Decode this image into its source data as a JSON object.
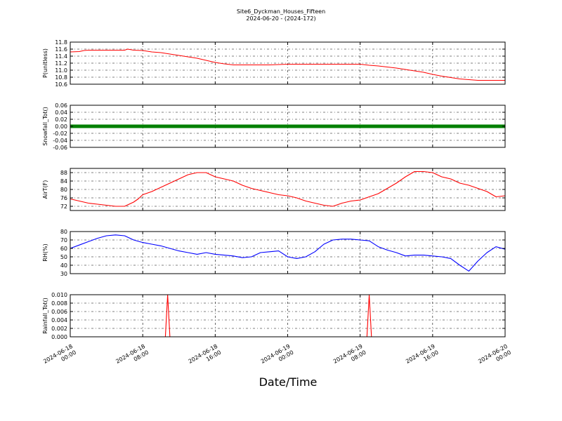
{
  "chart_data": {
    "type": "line",
    "title": "Site6_Dyckman_Houses_Fifteen",
    "subtitle": "2024-06-20 - (2024-172)",
    "xlabel": "Date/Time",
    "x_range": [
      "2024-06-18 00:00",
      "2024-06-20 00:00"
    ],
    "x_ticks": [
      {
        "value": "2024-06-18 00:00",
        "line1": "2024-06-18",
        "line2": "00:00"
      },
      {
        "value": "2024-06-18 08:00",
        "line1": "2024-06-18",
        "line2": "08:00"
      },
      {
        "value": "2024-06-18 16:00",
        "line1": "2024-06-18",
        "line2": "16:00"
      },
      {
        "value": "2024-06-19 00:00",
        "line1": "2024-06-19",
        "line2": "00:00"
      },
      {
        "value": "2024-06-19 08:00",
        "line1": "2024-06-19",
        "line2": "08:00"
      },
      {
        "value": "2024-06-19 16:00",
        "line1": "2024-06-19",
        "line2": "16:00"
      },
      {
        "value": "2024-06-20 00:00",
        "line1": "2024-06-20",
        "line2": "00:00"
      }
    ],
    "grid": true,
    "panels": [
      {
        "ylabel": "P(unitless)",
        "ylim": [
          10.6,
          11.8
        ],
        "yticks": [
          "10.6",
          "10.8",
          "11.0",
          "11.2",
          "11.4",
          "11.6",
          "11.8"
        ],
        "color": "#ff0000",
        "style": "line",
        "x": [
          "2024-06-18 00:00",
          "2024-06-18 01:00",
          "2024-06-18 01:30",
          "2024-06-18 02:00",
          "2024-06-18 04:00",
          "2024-06-18 06:00",
          "2024-06-18 06:20",
          "2024-06-18 07:00",
          "2024-06-18 08:00",
          "2024-06-18 09:00",
          "2024-06-18 10:00",
          "2024-06-18 11:00",
          "2024-06-18 12:00",
          "2024-06-18 13:00",
          "2024-06-18 14:00",
          "2024-06-18 15:00",
          "2024-06-18 16:00",
          "2024-06-18 17:00",
          "2024-06-18 18:00",
          "2024-06-18 20:00",
          "2024-06-18 22:00",
          "2024-06-19 00:00",
          "2024-06-19 04:00",
          "2024-06-19 08:00",
          "2024-06-19 09:00",
          "2024-06-19 10:00",
          "2024-06-19 11:00",
          "2024-06-19 12:00",
          "2024-06-19 13:00",
          "2024-06-19 14:00",
          "2024-06-19 15:00",
          "2024-06-19 16:00",
          "2024-06-19 17:00",
          "2024-06-19 18:00",
          "2024-06-19 19:00",
          "2024-06-19 20:00",
          "2024-06-19 21:00",
          "2024-06-19 22:00",
          "2024-06-20 00:00"
        ],
        "values": [
          11.52,
          11.53,
          11.56,
          11.57,
          11.57,
          11.57,
          11.6,
          11.57,
          11.56,
          11.52,
          11.5,
          11.46,
          11.42,
          11.38,
          11.34,
          11.28,
          11.22,
          11.18,
          11.15,
          11.15,
          11.15,
          11.17,
          11.17,
          11.17,
          11.14,
          11.12,
          11.09,
          11.06,
          11.02,
          10.98,
          10.94,
          10.88,
          10.83,
          10.79,
          10.75,
          10.73,
          10.71,
          10.71,
          10.71
        ]
      },
      {
        "ylabel": "Snowfall_Tot()",
        "ylim": [
          -0.06,
          0.06
        ],
        "yticks": [
          "-0.06",
          "-0.04",
          "-0.02",
          "0.00",
          "0.02",
          "0.04",
          "0.06"
        ],
        "color": "#008000",
        "style": "thick",
        "x": [
          "2024-06-18 00:00",
          "2024-06-20 00:00"
        ],
        "values": [
          0.0,
          0.0
        ]
      },
      {
        "ylabel": "AirT(F)",
        "ylim": [
          70,
          90
        ],
        "yticks": [
          "72",
          "76",
          "80",
          "84",
          "88"
        ],
        "ytick_values": [
          72,
          76,
          80,
          84,
          88
        ],
        "color": "#ff0000",
        "style": "line",
        "x": [
          "2024-06-18 00:00",
          "2024-06-18 01:00",
          "2024-06-18 02:00",
          "2024-06-18 03:00",
          "2024-06-18 04:00",
          "2024-06-18 05:00",
          "2024-06-18 06:00",
          "2024-06-18 07:00",
          "2024-06-18 07:30",
          "2024-06-18 08:00",
          "2024-06-18 09:00",
          "2024-06-18 10:00",
          "2024-06-18 11:00",
          "2024-06-18 12:00",
          "2024-06-18 13:00",
          "2024-06-18 14:00",
          "2024-06-18 15:00",
          "2024-06-18 16:00",
          "2024-06-18 17:00",
          "2024-06-18 18:00",
          "2024-06-18 19:00",
          "2024-06-18 20:00",
          "2024-06-18 21:00",
          "2024-06-18 22:00",
          "2024-06-18 23:00",
          "2024-06-19 00:00",
          "2024-06-19 01:00",
          "2024-06-19 02:00",
          "2024-06-19 03:00",
          "2024-06-19 04:00",
          "2024-06-19 05:00",
          "2024-06-19 06:00",
          "2024-06-19 07:00",
          "2024-06-19 08:00",
          "2024-06-19 09:00",
          "2024-06-19 10:00",
          "2024-06-19 11:00",
          "2024-06-19 12:00",
          "2024-06-19 13:00",
          "2024-06-19 14:00",
          "2024-06-19 15:00",
          "2024-06-19 16:00",
          "2024-06-19 17:00",
          "2024-06-19 18:00",
          "2024-06-19 19:00",
          "2024-06-19 20:00",
          "2024-06-19 21:00",
          "2024-06-19 22:00",
          "2024-06-19 23:00",
          "2024-06-20 00:00"
        ],
        "values": [
          75.5,
          74.5,
          73.5,
          73.0,
          72.5,
          72.0,
          72.0,
          74.0,
          75.5,
          77.5,
          79.0,
          81.0,
          83.0,
          85.0,
          87.0,
          88.0,
          88.0,
          86.0,
          85.0,
          84.0,
          82.0,
          80.5,
          79.5,
          78.5,
          77.5,
          77.0,
          76.0,
          74.5,
          73.5,
          72.5,
          72.0,
          73.5,
          74.5,
          75.0,
          76.5,
          78.0,
          80.5,
          83.0,
          86.0,
          88.5,
          88.5,
          88.0,
          86.0,
          85.0,
          83.0,
          82.0,
          80.5,
          79.0,
          76.5,
          77.0
        ]
      },
      {
        "ylabel": "RH(%)",
        "ylim": [
          30,
          80
        ],
        "yticks": [
          "30",
          "40",
          "50",
          "60",
          "70",
          "80"
        ],
        "color": "#0000ff",
        "style": "line",
        "x": [
          "2024-06-18 00:00",
          "2024-06-18 01:00",
          "2024-06-18 02:00",
          "2024-06-18 03:00",
          "2024-06-18 04:00",
          "2024-06-18 05:00",
          "2024-06-18 06:00",
          "2024-06-18 07:00",
          "2024-06-18 08:00",
          "2024-06-18 09:00",
          "2024-06-18 10:00",
          "2024-06-18 11:00",
          "2024-06-18 12:00",
          "2024-06-18 13:00",
          "2024-06-18 14:00",
          "2024-06-18 15:00",
          "2024-06-18 16:00",
          "2024-06-18 17:00",
          "2024-06-18 18:00",
          "2024-06-18 19:00",
          "2024-06-18 20:00",
          "2024-06-18 21:00",
          "2024-06-18 22:00",
          "2024-06-18 23:00",
          "2024-06-19 00:00",
          "2024-06-19 01:00",
          "2024-06-19 02:00",
          "2024-06-19 03:00",
          "2024-06-19 04:00",
          "2024-06-19 05:00",
          "2024-06-19 06:00",
          "2024-06-19 07:00",
          "2024-06-19 08:00",
          "2024-06-19 09:00",
          "2024-06-19 10:00",
          "2024-06-19 11:00",
          "2024-06-19 12:00",
          "2024-06-19 13:00",
          "2024-06-19 14:00",
          "2024-06-19 15:00",
          "2024-06-19 16:00",
          "2024-06-19 17:00",
          "2024-06-19 18:00",
          "2024-06-19 19:00",
          "2024-06-19 20:00",
          "2024-06-19 21:00",
          "2024-06-19 22:00",
          "2024-06-19 23:00",
          "2024-06-20 00:00"
        ],
        "values": [
          60,
          64,
          68,
          72,
          75,
          76,
          75,
          70,
          67,
          65,
          63,
          60,
          57,
          55,
          53,
          55,
          53,
          52,
          51,
          49,
          50,
          55,
          56,
          57,
          50,
          48,
          50,
          56,
          65,
          70,
          71,
          71,
          70,
          69,
          62,
          58,
          55,
          51,
          52,
          52,
          51,
          50,
          48,
          40,
          33,
          45,
          55,
          62,
          59
        ]
      },
      {
        "ylabel": "Rainfall_Tot()",
        "ylim": [
          0.0,
          0.01
        ],
        "yticks": [
          "0.000",
          "0.002",
          "0.004",
          "0.006",
          "0.008",
          "0.010"
        ],
        "color": "#ff0000",
        "style": "line",
        "x": [
          "2024-06-18 00:00",
          "2024-06-18 10:30",
          "2024-06-18 10:45",
          "2024-06-18 11:00",
          "2024-06-19 08:45",
          "2024-06-19 09:00",
          "2024-06-19 09:15",
          "2024-06-20 00:00"
        ],
        "values": [
          0.0,
          0.0,
          0.01,
          0.0,
          0.0,
          0.01,
          0.0,
          0.0
        ]
      }
    ]
  }
}
